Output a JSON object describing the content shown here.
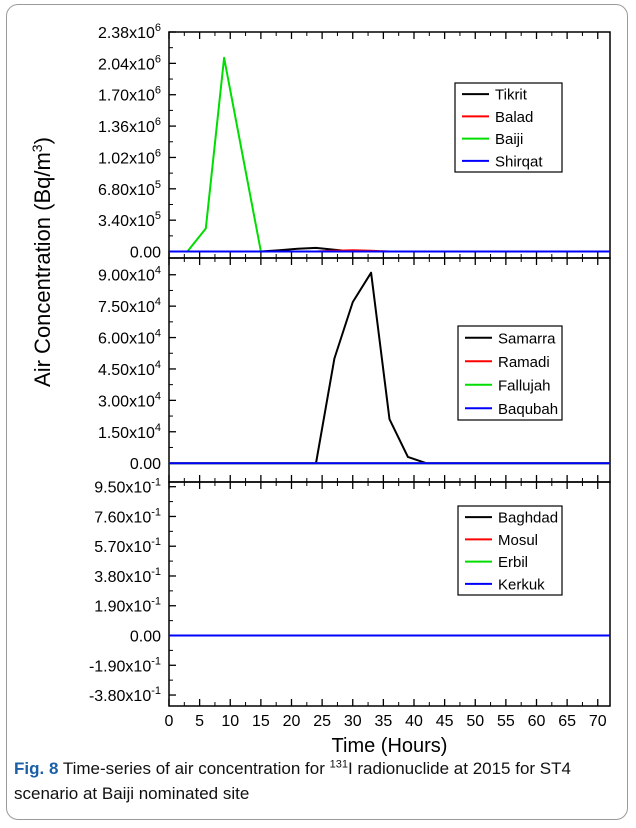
{
  "chart_data": {
    "type": "line",
    "ylabel": "Air Concentration (Bq/m³)",
    "ylabel_base": "Air Concentration (Bq/m",
    "ylabel_sup": "3",
    "ylabel_close": ")",
    "xlabel": "Time (Hours)",
    "xlim": [
      0,
      72
    ],
    "x_ticks": [
      "0",
      "5",
      "10",
      "15",
      "20",
      "25",
      "30",
      "35",
      "40",
      "45",
      "50",
      "55",
      "60",
      "65",
      "70"
    ],
    "panels": [
      {
        "ylim": [
          -70000,
          2380000
        ],
        "y_ticks": [
          {
            "v": 2380000,
            "m": "2.38",
            "e": "6"
          },
          {
            "v": 2040000,
            "m": "2.04",
            "e": "6"
          },
          {
            "v": 1700000,
            "m": "1.70",
            "e": "6"
          },
          {
            "v": 1360000,
            "m": "1.36",
            "e": "6"
          },
          {
            "v": 1020000,
            "m": "1.02",
            "e": "6"
          },
          {
            "v": 680000,
            "m": "6.80",
            "e": "5"
          },
          {
            "v": 340000,
            "m": "3.40",
            "e": "5"
          },
          {
            "v": 0,
            "m": "0.00",
            "e": ""
          }
        ],
        "series": [
          {
            "name": "Tikrit",
            "color": "#000000",
            "x": [
              0,
              15,
              18,
              21,
              24,
              27,
              30,
              72
            ],
            "y": [
              0,
              0,
              15000,
              30000,
              40000,
              20000,
              0,
              0
            ]
          },
          {
            "name": "Balad",
            "color": "#ff0000",
            "x": [
              0,
              24,
              27,
              30,
              33,
              36,
              72
            ],
            "y": [
              0,
              0,
              8000,
              15000,
              8000,
              0,
              0
            ]
          },
          {
            "name": "Baiji",
            "color": "#00dd00",
            "x": [
              0,
              3,
              6,
              9,
              12,
              15,
              72
            ],
            "y": [
              0,
              0,
              250000,
              2100000,
              1050000,
              0,
              0
            ]
          },
          {
            "name": "Shirqat",
            "color": "#0000ff",
            "x": [
              0,
              72
            ],
            "y": [
              0,
              0
            ]
          }
        ]
      },
      {
        "ylim": [
          -9000,
          98000
        ],
        "y_ticks": [
          {
            "v": 90000,
            "m": "9.00",
            "e": "4"
          },
          {
            "v": 75000,
            "m": "7.50",
            "e": "4"
          },
          {
            "v": 60000,
            "m": "6.00",
            "e": "4"
          },
          {
            "v": 45000,
            "m": "4.50",
            "e": "4"
          },
          {
            "v": 30000,
            "m": "3.00",
            "e": "4"
          },
          {
            "v": 15000,
            "m": "1.50",
            "e": "4"
          },
          {
            "v": 0,
            "m": "0.00",
            "e": ""
          }
        ],
        "series": [
          {
            "name": "Samarra",
            "color": "#000000",
            "x": [
              0,
              24,
              27,
              30,
              33,
              36,
              39,
              42,
              72
            ],
            "y": [
              0,
              0,
              50000,
              77000,
              91000,
              21000,
              3000,
              0,
              0
            ]
          },
          {
            "name": "Ramadi",
            "color": "#ff0000",
            "x": [
              0,
              72
            ],
            "y": [
              0,
              0
            ]
          },
          {
            "name": "Fallujah",
            "color": "#00dd00",
            "x": [
              0,
              72
            ],
            "y": [
              0,
              0
            ]
          },
          {
            "name": "Baqubah",
            "color": "#0000ff",
            "x": [
              0,
              72
            ],
            "y": [
              0,
              0
            ]
          }
        ]
      },
      {
        "ylim": [
          -0.45,
          0.98
        ],
        "y_ticks": [
          {
            "v": 0.95,
            "m": "9.50",
            "e": "-1"
          },
          {
            "v": 0.76,
            "m": "7.60",
            "e": "-1"
          },
          {
            "v": 0.57,
            "m": "5.70",
            "e": "-1"
          },
          {
            "v": 0.38,
            "m": "3.80",
            "e": "-1"
          },
          {
            "v": 0.19,
            "m": "1.90",
            "e": "-1"
          },
          {
            "v": 0,
            "m": "0.00",
            "e": ""
          },
          {
            "v": -0.19,
            "m": "-1.90",
            "e": "-1"
          },
          {
            "v": -0.38,
            "m": "-3.80",
            "e": "-1"
          }
        ],
        "series": [
          {
            "name": "Baghdad",
            "color": "#000000",
            "x": [
              0,
              72
            ],
            "y": [
              0,
              0
            ]
          },
          {
            "name": "Mosul",
            "color": "#ff0000",
            "x": [
              0,
              72
            ],
            "y": [
              0,
              0
            ]
          },
          {
            "name": "Erbil",
            "color": "#00dd00",
            "x": [
              0,
              72
            ],
            "y": [
              0,
              0
            ]
          },
          {
            "name": "Kerkuk",
            "color": "#0000ff",
            "x": [
              0,
              72
            ],
            "y": [
              0,
              0
            ]
          }
        ]
      }
    ]
  },
  "caption": {
    "label": "Fig. 8",
    "text_before": "Time-series of air concentration for",
    "sup": "131",
    "text_after": "I radionuclide at 2015 for ST4 scenario at Baiji nominated site"
  }
}
